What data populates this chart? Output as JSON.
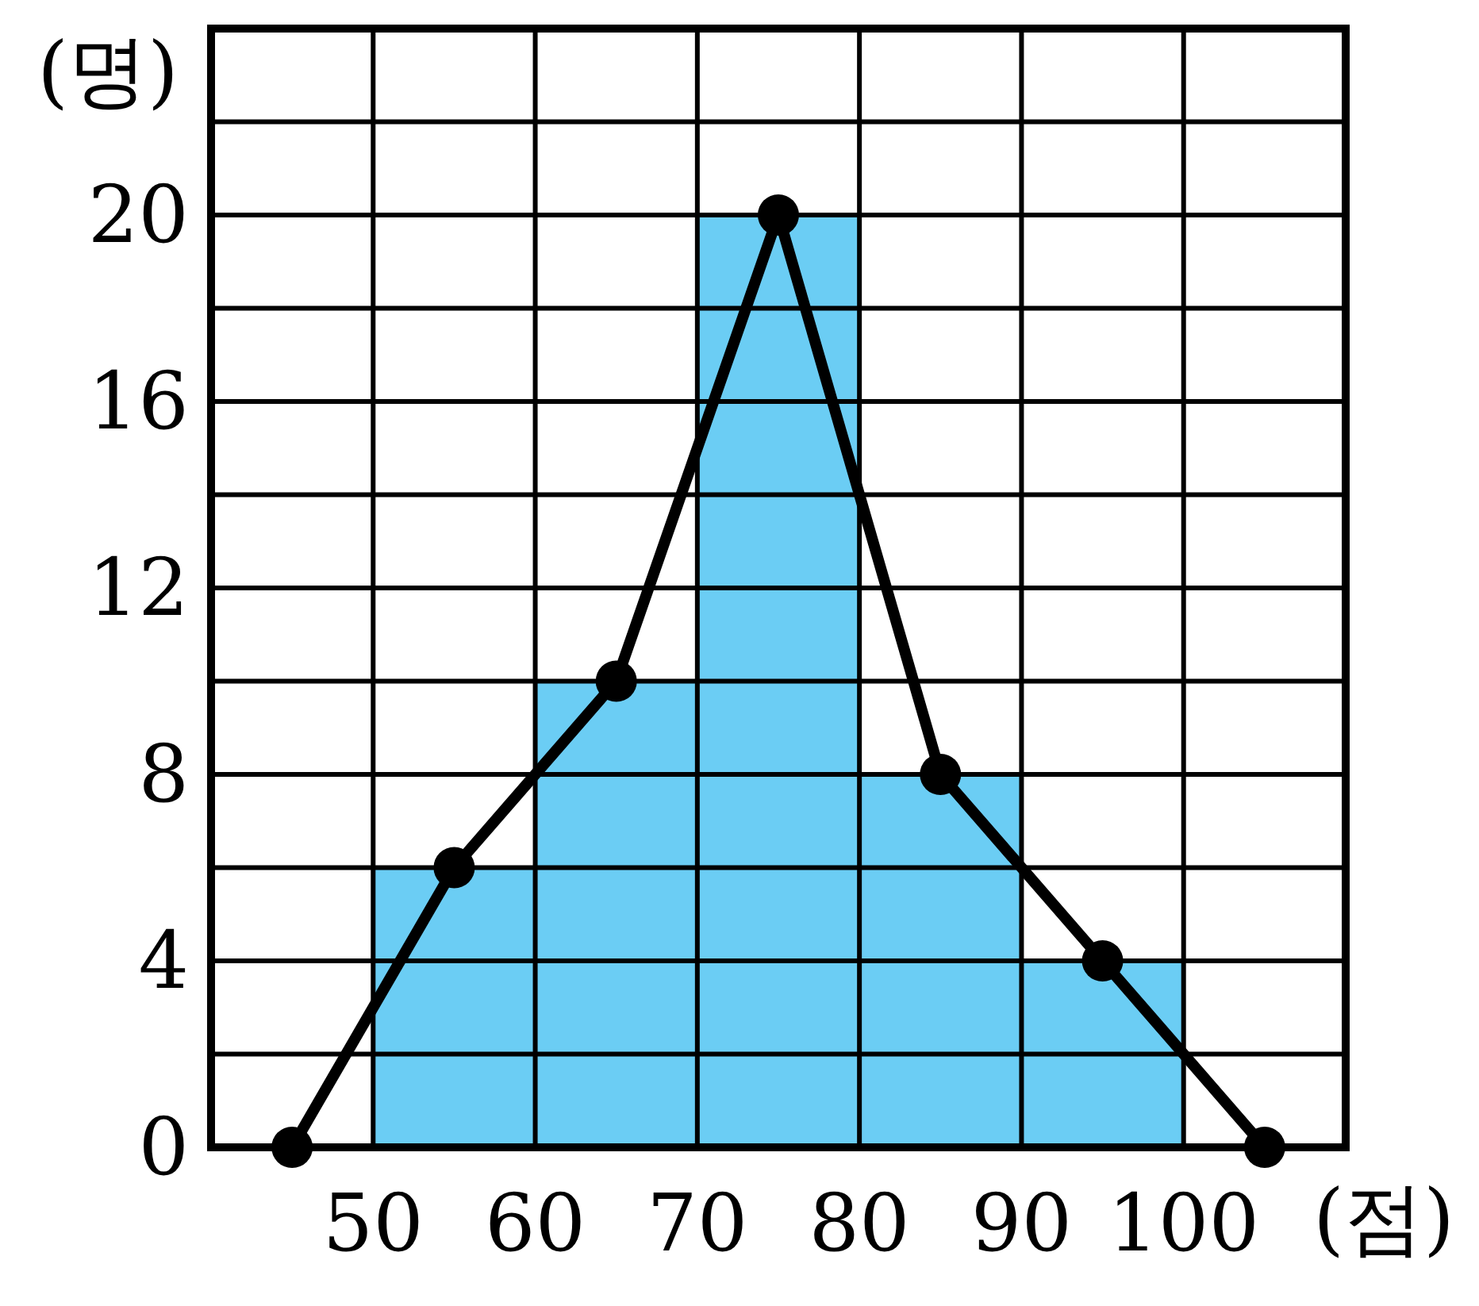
{
  "chart_data": {
    "type": "histogram",
    "xlabel": "(점)",
    "ylabel": "(명)",
    "bins": [
      50,
      60,
      70,
      80,
      90,
      100
    ],
    "values": [
      6,
      10,
      20,
      8,
      4
    ],
    "color": "#6bcdf4",
    "series": [
      {
        "type": "line",
        "x": [
          45,
          55,
          65,
          75,
          85,
          95,
          105
        ],
        "values": [
          0,
          6,
          10,
          20,
          8,
          4,
          0
        ],
        "color": "#000000",
        "marker": "circle"
      }
    ],
    "xlim": [
      40,
      110
    ],
    "ylim": [
      0,
      24
    ],
    "xticks": [
      {
        "value": 40,
        "label": null
      },
      50,
      60,
      70,
      80,
      90,
      100
    ],
    "yticks": [
      0,
      {
        "value": 2,
        "label": null
      },
      4,
      {
        "value": 6,
        "label": null
      },
      8,
      {
        "value": 10,
        "label": null
      },
      12,
      {
        "value": 14,
        "label": null
      },
      16,
      {
        "value": 18,
        "label": null
      },
      20,
      {
        "value": 22,
        "label": null
      }
    ],
    "grid": true
  }
}
